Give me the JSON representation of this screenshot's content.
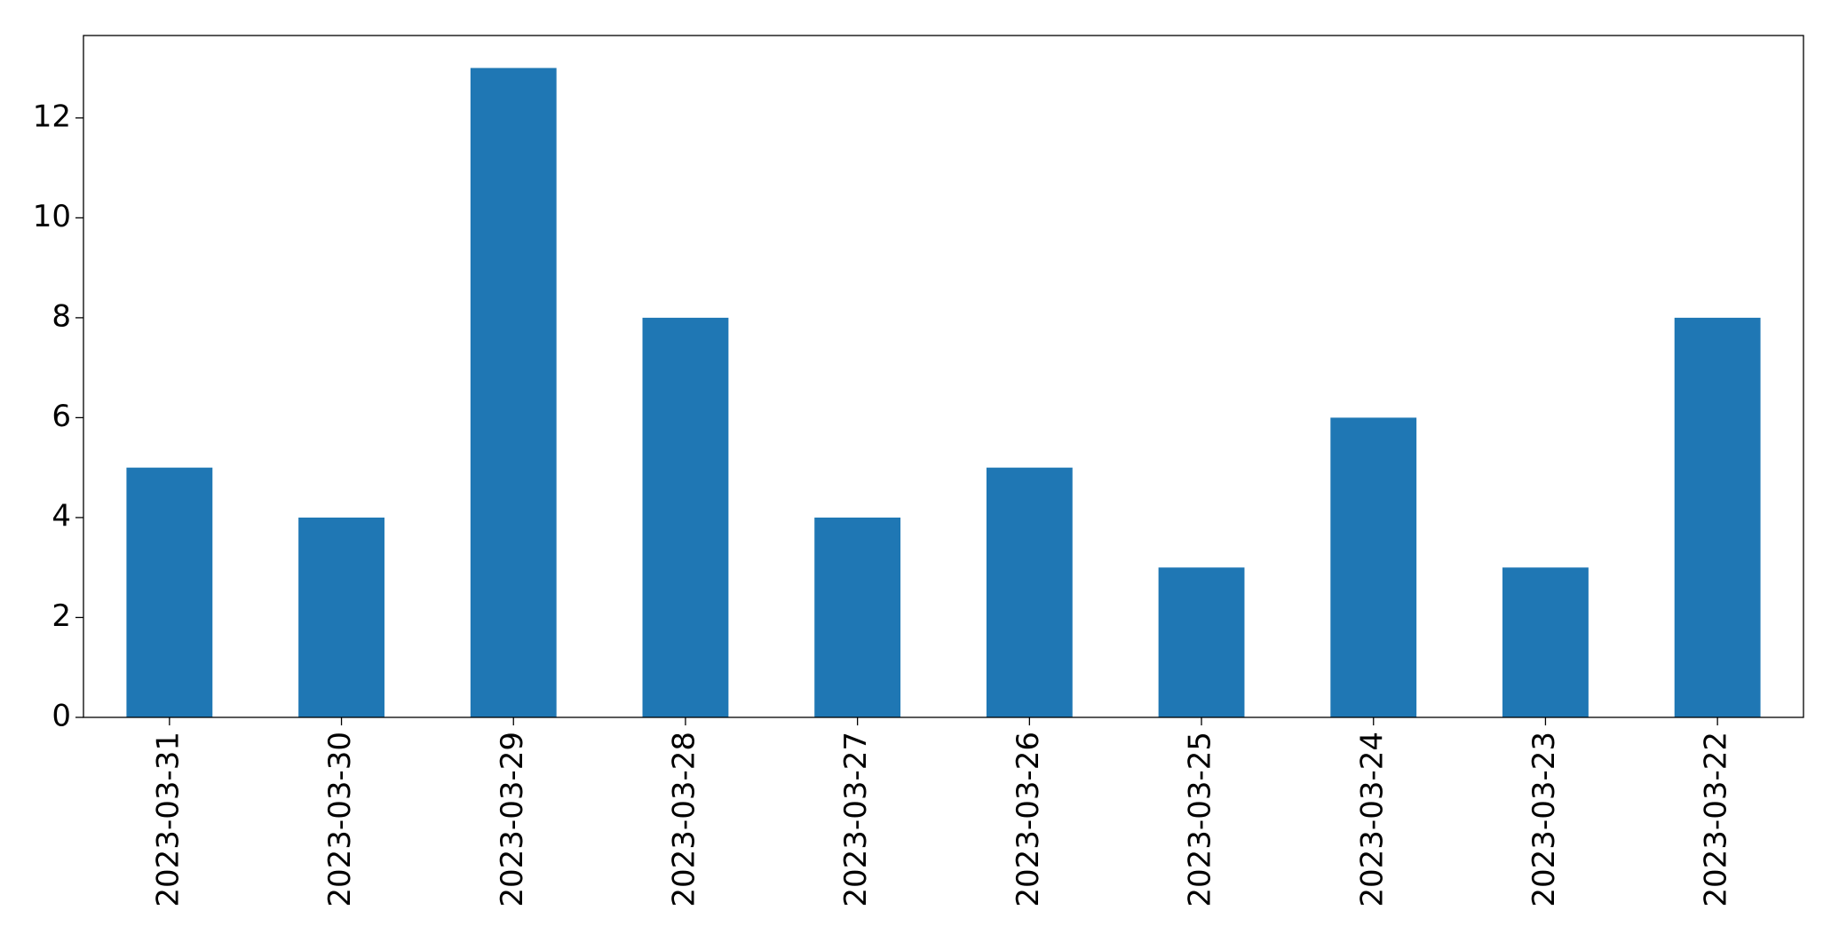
{
  "chart_data": {
    "type": "bar",
    "categories": [
      "2023-03-31",
      "2023-03-30",
      "2023-03-29",
      "2023-03-28",
      "2023-03-27",
      "2023-03-26",
      "2023-03-25",
      "2023-03-24",
      "2023-03-23",
      "2023-03-22"
    ],
    "values": [
      5,
      4,
      13,
      8,
      4,
      5,
      3,
      6,
      3,
      8
    ],
    "color": "#1f77b4",
    "ylim": [
      0,
      13.65
    ],
    "yticks": [
      0,
      2,
      4,
      6,
      8,
      10,
      12
    ],
    "grid": false
  }
}
